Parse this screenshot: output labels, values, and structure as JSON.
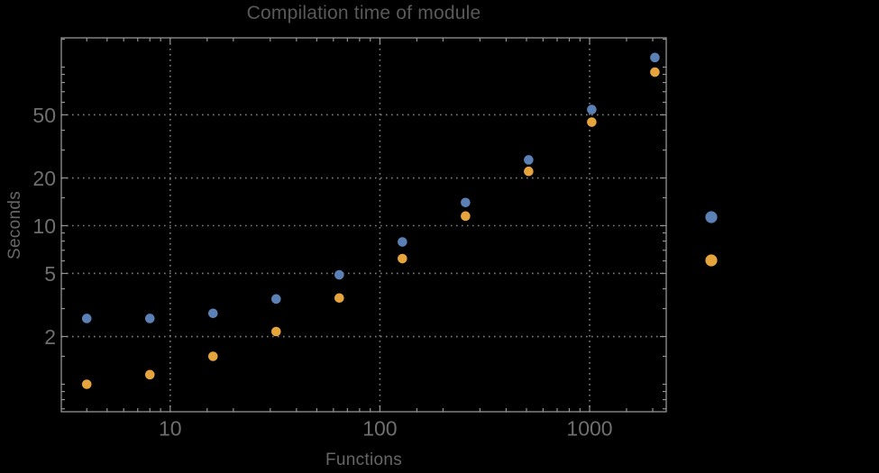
{
  "colors": {
    "background": "#000000",
    "frame": "#949494",
    "grid": "#7f7f7f",
    "tick_label": "#6f6f6f",
    "axis_label": "#666666",
    "title_text": "#595959",
    "series1": "#5B80B5",
    "series2": "#E6A43C"
  },
  "chart_data": {
    "type": "scatter",
    "title": "Compilation time of module",
    "xlabel": "Functions",
    "ylabel": "Seconds",
    "xscale": "log",
    "yscale": "log",
    "xlim": [
      3.0,
      2330
    ],
    "ylim": [
      0.67,
      153
    ],
    "grid": "dotted gridlines at labeled major ticks",
    "x": [
      4,
      8,
      16,
      32,
      64,
      128,
      256,
      512,
      1024,
      2048
    ],
    "series": [
      {
        "name": "series-1-blue",
        "color": "#5B80B5",
        "values": [
          2.6,
          2.6,
          2.8,
          3.45,
          4.9,
          7.9,
          14,
          26,
          54,
          115
        ]
      },
      {
        "name": "series-2-orange",
        "color": "#E6A43C",
        "values": [
          1.0,
          1.15,
          1.5,
          2.15,
          3.5,
          6.2,
          11.5,
          22,
          45,
          93
        ]
      }
    ],
    "x_ticks": [
      {
        "value": 10,
        "label": "10"
      },
      {
        "value": 100,
        "label": "100"
      },
      {
        "value": 1000,
        "label": "1000"
      }
    ],
    "y_ticks": [
      {
        "value": 2,
        "label": "2"
      },
      {
        "value": 5,
        "label": "5"
      },
      {
        "value": 10,
        "label": "10"
      },
      {
        "value": 20,
        "label": "20"
      },
      {
        "value": 50,
        "label": "50"
      }
    ],
    "legend": {
      "position": "right-outside",
      "labels_visible": false,
      "markers": [
        "#5B80B5",
        "#E6A43C"
      ]
    }
  }
}
